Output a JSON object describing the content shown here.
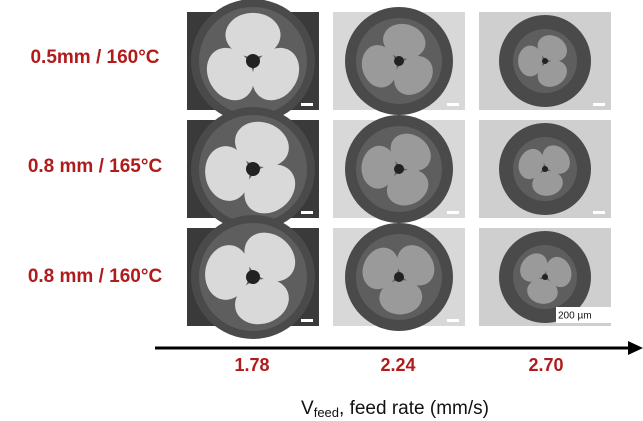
{
  "rows": [
    {
      "label": "0.5mm / 160°C"
    },
    {
      "label": "0.8 mm / 165°C"
    },
    {
      "label": "0.8 mm / 160°C"
    }
  ],
  "columns": [
    "1.78",
    "2.24",
    "2.70"
  ],
  "axis_label": {
    "main": "V",
    "subscript": "feed",
    "rest": ", feed rate (mm/s)"
  },
  "scale_bar": "200 µm"
}
